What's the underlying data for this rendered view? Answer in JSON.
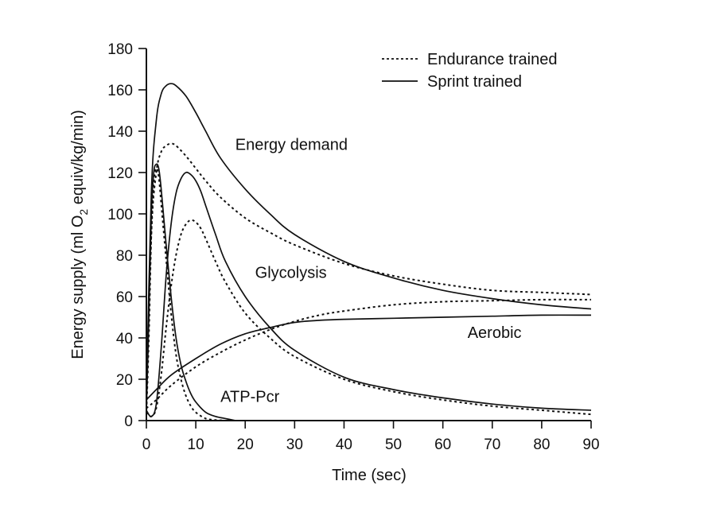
{
  "chart_data": {
    "type": "line",
    "title": "",
    "xlabel": "Time (sec)",
    "ylabel": "Energy supply (ml O",
    "ylabel_subscript": "2",
    "ylabel_suffix": " equiv/kg/min)",
    "xlim": [
      0,
      90
    ],
    "ylim": [
      0,
      180
    ],
    "xticks": [
      0,
      10,
      20,
      30,
      40,
      50,
      60,
      70,
      80,
      90
    ],
    "xtick_labels": [
      "0",
      "10",
      "20",
      "30",
      "40",
      "50",
      "60",
      "70",
      "80",
      "90"
    ],
    "yticks": [
      0,
      20,
      40,
      60,
      80,
      100,
      120,
      140,
      160,
      180
    ],
    "ytick_labels": [
      "0",
      "20",
      "40",
      "60",
      "80",
      "100",
      "120",
      "140",
      "160",
      "180"
    ],
    "grid": false,
    "legend": {
      "position": "top-right",
      "entries": [
        {
          "label": "Endurance trained",
          "style": "dotted"
        },
        {
          "label": "Sprint trained",
          "style": "solid"
        }
      ]
    },
    "annotations": [
      {
        "text": "Energy demand",
        "x": 18,
        "y": 131
      },
      {
        "text": "Glycolysis",
        "x": 22,
        "y": 69
      },
      {
        "text": "Aerobic",
        "x": 65,
        "y": 40
      },
      {
        "text": "ATP-Pcr",
        "x": 15,
        "y": 9
      }
    ],
    "series": [
      {
        "name": "Energy demand (Sprint trained)",
        "style": "solid",
        "x": [
          0,
          1,
          2,
          3,
          4,
          5,
          6,
          8,
          10,
          12,
          15,
          20,
          25,
          30,
          40,
          50,
          60,
          70,
          80,
          90
        ],
        "y": [
          10,
          110,
          145,
          158,
          162,
          163,
          162,
          157,
          149,
          140,
          127,
          112,
          100,
          90,
          77,
          69,
          63,
          59,
          56,
          54
        ]
      },
      {
        "name": "Energy demand (Endurance trained)",
        "style": "dotted",
        "x": [
          0,
          1,
          2,
          3,
          4,
          5,
          6,
          8,
          10,
          12,
          15,
          20,
          25,
          30,
          40,
          50,
          60,
          70,
          80,
          90
        ],
        "y": [
          5,
          90,
          120,
          130,
          133,
          134,
          133,
          128,
          122,
          116,
          108,
          98,
          91,
          85,
          76,
          70,
          66,
          63,
          62,
          61
        ]
      },
      {
        "name": "ATP-Pcr (Sprint trained)",
        "style": "solid",
        "x": [
          0,
          0.5,
          1,
          1.5,
          2,
          2.5,
          3,
          4,
          5,
          6,
          7,
          8,
          9,
          10,
          12,
          14,
          16,
          18
        ],
        "y": [
          5,
          50,
          100,
          120,
          124,
          122,
          112,
          85,
          60,
          40,
          27,
          19,
          13,
          9,
          4,
          2,
          1,
          0
        ]
      },
      {
        "name": "ATP-Pcr (Endurance trained)",
        "style": "dotted",
        "x": [
          0,
          0.5,
          1,
          1.5,
          2,
          2.5,
          3,
          4,
          5,
          6,
          7,
          8,
          9,
          10,
          12,
          14,
          16
        ],
        "y": [
          3,
          40,
          90,
          115,
          122,
          118,
          105,
          78,
          52,
          32,
          20,
          12,
          7,
          4,
          1,
          0.3,
          0
        ]
      },
      {
        "name": "Glycolysis (Sprint trained)",
        "style": "solid",
        "x": [
          0,
          1,
          2,
          3,
          4,
          5,
          6,
          7,
          8,
          9,
          10,
          11,
          12,
          14,
          16,
          20,
          25,
          30,
          40,
          50,
          60,
          70,
          80,
          90
        ],
        "y": [
          5,
          2,
          8,
          35,
          70,
          95,
          110,
          117,
          120,
          119,
          116,
          111,
          104,
          90,
          77,
          60,
          45,
          34,
          21,
          15,
          11,
          8,
          6,
          5
        ]
      },
      {
        "name": "Glycolysis (Endurance trained)",
        "style": "dotted",
        "x": [
          0,
          1,
          2,
          3,
          4,
          5,
          6,
          7,
          8,
          9,
          10,
          11,
          12,
          14,
          16,
          20,
          25,
          30,
          40,
          50,
          60,
          70,
          80,
          90
        ],
        "y": [
          4,
          2,
          6,
          22,
          45,
          65,
          80,
          90,
          95,
          97,
          96,
          93,
          88,
          77,
          67,
          52,
          40,
          31,
          20,
          14,
          10,
          7,
          5,
          3
        ]
      },
      {
        "name": "Aerobic (Sprint trained)",
        "style": "solid",
        "x": [
          0,
          2,
          5,
          10,
          15,
          20,
          25,
          30,
          35,
          40,
          50,
          60,
          70,
          80,
          90
        ],
        "y": [
          10,
          15,
          22,
          30,
          37,
          42,
          45,
          47.5,
          48.5,
          49,
          49.5,
          50,
          50.5,
          51,
          51
        ]
      },
      {
        "name": "Aerobic (Endurance trained)",
        "style": "dotted",
        "x": [
          0,
          2,
          5,
          10,
          15,
          20,
          25,
          30,
          35,
          40,
          50,
          60,
          70,
          80,
          90
        ],
        "y": [
          6,
          10,
          17,
          26,
          33,
          39,
          44,
          48,
          51,
          53,
          56,
          57.5,
          58,
          58.5,
          58.5
        ]
      }
    ]
  }
}
